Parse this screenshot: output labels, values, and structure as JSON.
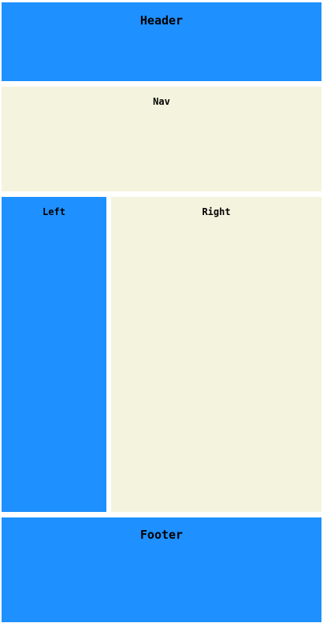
{
  "header": {
    "label": "Header"
  },
  "nav": {
    "label": "Nav"
  },
  "left": {
    "label": "Left"
  },
  "right": {
    "label": "Right"
  },
  "footer": {
    "label": "Footer"
  },
  "colors": {
    "blue": "#1e90ff",
    "beige": "#f4f4de"
  }
}
